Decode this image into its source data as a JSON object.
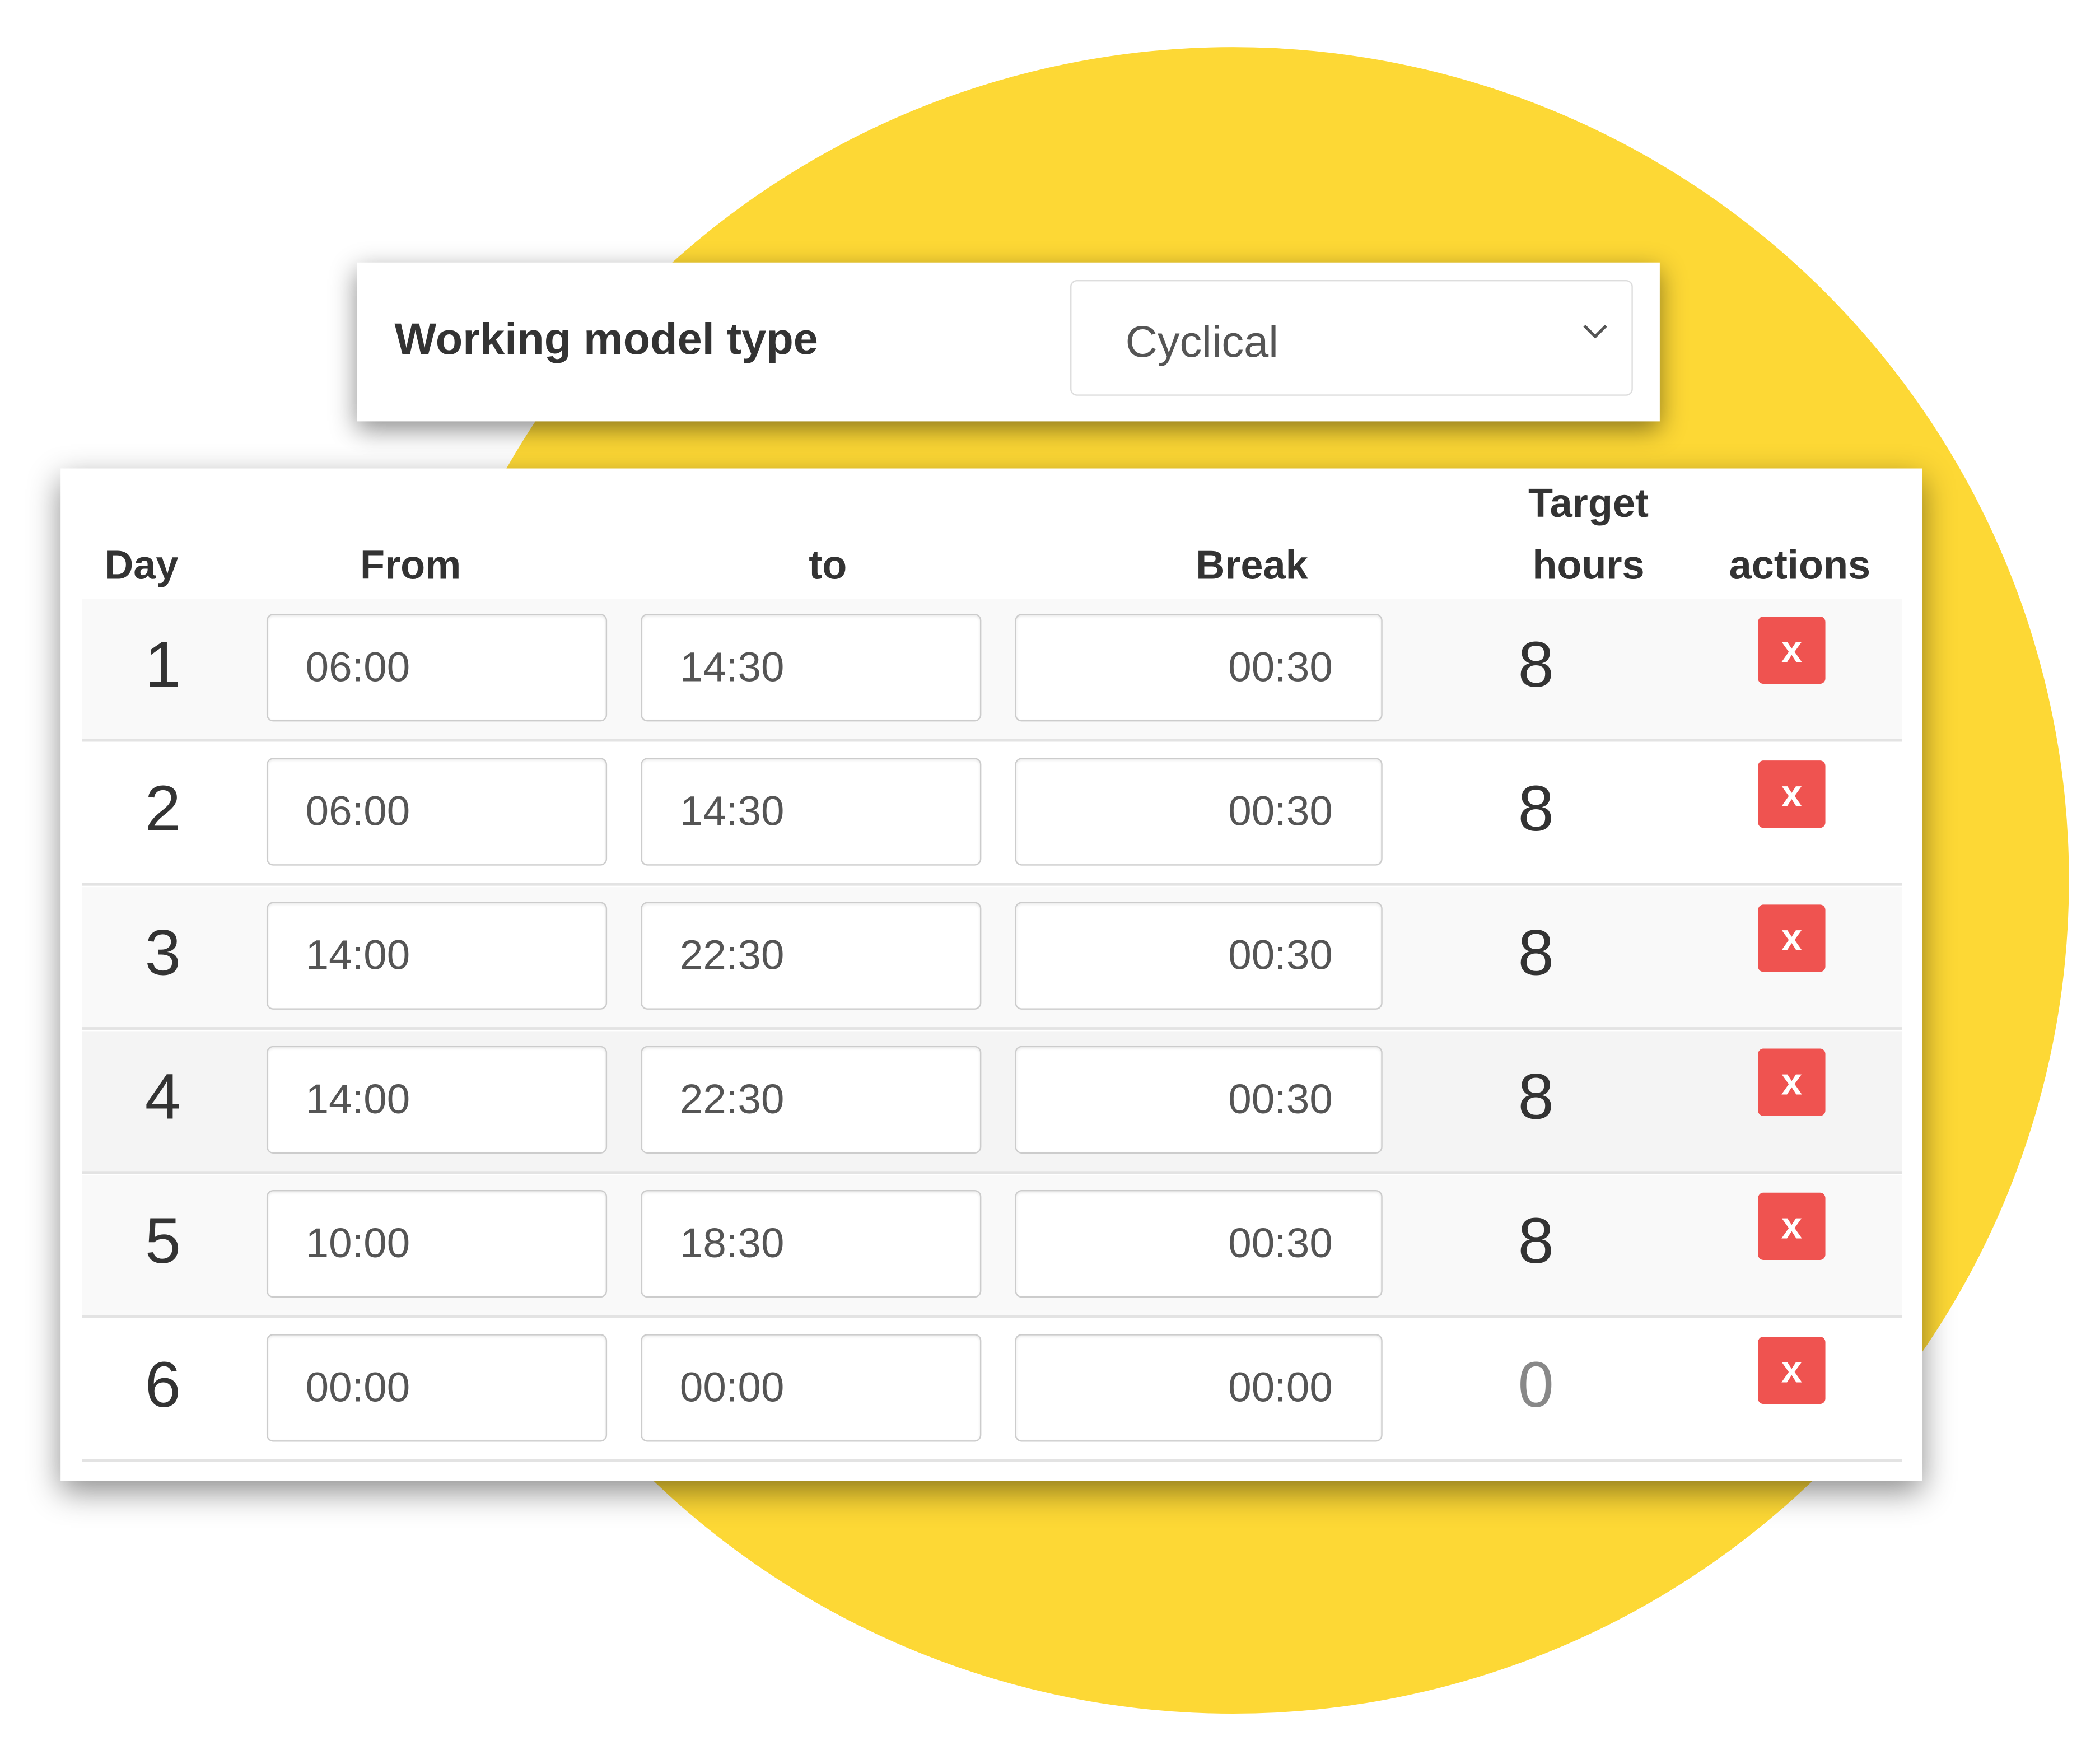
{
  "colors": {
    "accent_circle": "#fdd835",
    "delete_button": "#ef5350"
  },
  "model": {
    "label": "Working model type",
    "selected": "Cyclical",
    "icon": "chevron-down-icon"
  },
  "table": {
    "headers": {
      "day": "Day",
      "from": "From",
      "to": "to",
      "break": "Break",
      "target_line1": "Target",
      "target_line2": "hours",
      "actions": "actions"
    },
    "delete_label": "x",
    "rows": [
      {
        "day": "1",
        "from": "06:00",
        "to": "14:30",
        "break": "00:30",
        "target": "8"
      },
      {
        "day": "2",
        "from": "06:00",
        "to": "14:30",
        "break": "00:30",
        "target": "8"
      },
      {
        "day": "3",
        "from": "14:00",
        "to": "22:30",
        "break": "00:30",
        "target": "8"
      },
      {
        "day": "4",
        "from": "14:00",
        "to": "22:30",
        "break": "00:30",
        "target": "8"
      },
      {
        "day": "5",
        "from": "10:00",
        "to": "18:30",
        "break": "00:30",
        "target": "8"
      },
      {
        "day": "6",
        "from": "00:00",
        "to": "00:00",
        "break": "00:00",
        "target": "0"
      }
    ]
  }
}
